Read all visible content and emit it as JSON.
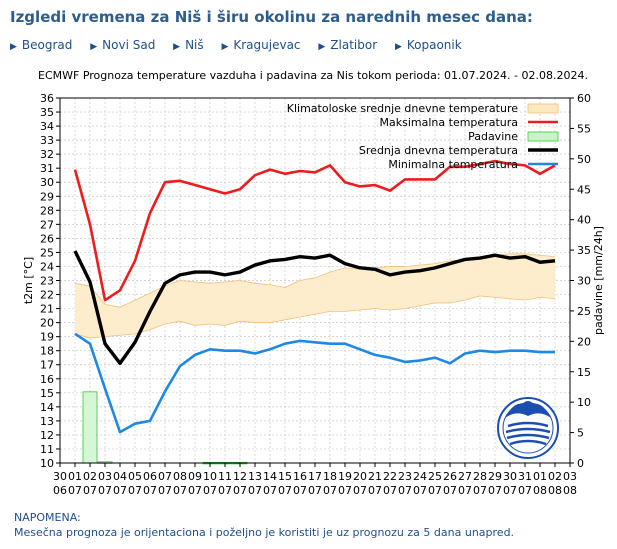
{
  "page": {
    "title": "Izgledi vremena za Niš i širu okolinu za narednih mesec dana:",
    "nav": [
      "Beograd",
      "Novi Sad",
      "Niš",
      "Kragujevac",
      "Zlatibor",
      "Kopaonik"
    ],
    "note_title": "NAPOMENA:",
    "note_text_a": "Mesečna prognoza je orijentaciona i poželjno je koristiti je uz prognozu za",
    "note_link": "5 dana",
    "note_text_b": "unapred."
  },
  "chart_data": {
    "type": "line",
    "title": "ECMWF Prognoza temperature  vazduha i padavina za Nis tokom perioda: 01.07.2024. - 02.08.2024.",
    "ylabel": "t2m [°C]",
    "y2label": "padavine [mm/24h]",
    "ylim": [
      10,
      36
    ],
    "y2lim": [
      0,
      60
    ],
    "x_day": [
      "30",
      "01",
      "02",
      "03",
      "04",
      "05",
      "06",
      "07",
      "08",
      "09",
      "10",
      "11",
      "12",
      "13",
      "14",
      "15",
      "16",
      "17",
      "18",
      "19",
      "20",
      "21",
      "22",
      "23",
      "24",
      "25",
      "26",
      "27",
      "28",
      "29",
      "30",
      "31",
      "01",
      "02",
      "03"
    ],
    "x_month": [
      "06",
      "07",
      "07",
      "07",
      "07",
      "07",
      "07",
      "07",
      "07",
      "07",
      "07",
      "07",
      "07",
      "07",
      "07",
      "07",
      "07",
      "07",
      "07",
      "07",
      "07",
      "07",
      "07",
      "07",
      "07",
      "07",
      "07",
      "07",
      "07",
      "07",
      "07",
      "07",
      "08",
      "08",
      "08"
    ],
    "yticks": [
      10,
      11,
      12,
      13,
      14,
      15,
      16,
      17,
      18,
      19,
      20,
      21,
      22,
      23,
      24,
      25,
      26,
      27,
      28,
      29,
      30,
      31,
      32,
      33,
      34,
      35,
      36
    ],
    "y2ticks": [
      0,
      5,
      10,
      15,
      20,
      25,
      30,
      35,
      40,
      45,
      50,
      55,
      60
    ],
    "legend": [
      {
        "label": "Klimatoloske srednje dnevne temperature",
        "color": "#fde9c0",
        "type": "band"
      },
      {
        "label": "Maksimalna temperatura",
        "color": "#ee1c1c",
        "type": "line"
      },
      {
        "label": "Padavine",
        "color": "#c8f5c8",
        "type": "bar"
      },
      {
        "label": "Srednja dnevna temperatura",
        "color": "#000000",
        "type": "line"
      },
      {
        "label": "Minimalna temperatura",
        "color": "#1e88e5",
        "type": "line"
      }
    ],
    "series": [
      {
        "name": "Maksimalna temperatura",
        "start_index": 1,
        "values": [
          30.9,
          27.0,
          21.6,
          22.3,
          24.4,
          27.8,
          30.0,
          30.1,
          29.8,
          29.5,
          29.2,
          29.5,
          30.5,
          30.9,
          30.6,
          30.8,
          30.7,
          31.2,
          30.0,
          29.7,
          29.8,
          29.4,
          30.2,
          30.2,
          30.2,
          31.1,
          31.1,
          31.3,
          31.5,
          31.3,
          31.2,
          30.6,
          31.2
        ]
      },
      {
        "name": "Srednja dnevna temperatura",
        "start_index": 1,
        "values": [
          25.1,
          22.9,
          18.5,
          17.1,
          18.6,
          20.8,
          22.8,
          23.4,
          23.6,
          23.6,
          23.4,
          23.6,
          24.1,
          24.4,
          24.5,
          24.7,
          24.6,
          24.8,
          24.2,
          23.9,
          23.8,
          23.4,
          23.6,
          23.7,
          23.9,
          24.2,
          24.5,
          24.6,
          24.8,
          24.6,
          24.7,
          24.3,
          24.4
        ]
      },
      {
        "name": "Minimalna temperatura",
        "start_index": 1,
        "values": [
          19.2,
          18.5,
          15.3,
          12.2,
          12.8,
          13.0,
          15.1,
          16.9,
          17.7,
          18.1,
          18.0,
          18.0,
          17.8,
          18.1,
          18.5,
          18.7,
          18.6,
          18.5,
          18.5,
          18.1,
          17.7,
          17.5,
          17.2,
          17.3,
          17.5,
          17.1,
          17.8,
          18.0,
          17.9,
          18.0,
          18.0,
          17.9,
          17.9
        ]
      },
      {
        "name": "Klimatoloske srednje dnevne temperature (donja granica)",
        "start_index": 1,
        "values": [
          19.2,
          18.9,
          19.0,
          19.1,
          19.2,
          19.5,
          19.9,
          20.1,
          19.8,
          19.9,
          19.8,
          20.1,
          20.0,
          20.0,
          20.2,
          20.4,
          20.6,
          20.8,
          20.8,
          20.9,
          21.0,
          20.9,
          21.0,
          21.2,
          21.4,
          21.4,
          21.6,
          21.9,
          21.8,
          21.7,
          21.6,
          21.8,
          21.7
        ]
      },
      {
        "name": "Klimatoloske srednje dnevne temperature (gornja granica)",
        "start_index": 1,
        "values": [
          22.8,
          22.6,
          21.3,
          21.1,
          21.6,
          22.1,
          22.6,
          23.0,
          22.9,
          22.8,
          22.9,
          23.0,
          22.8,
          22.7,
          22.5,
          23.0,
          23.2,
          23.6,
          23.9,
          23.8,
          23.9,
          24.0,
          24.0,
          24.1,
          24.2,
          24.4,
          24.5,
          24.6,
          24.8,
          24.9,
          24.9,
          24.8,
          24.7
        ]
      },
      {
        "name": "Padavine",
        "unit": "mm/24h",
        "start_index": 1,
        "values": [
          0,
          11.7,
          0.2,
          0,
          0,
          0,
          0,
          0,
          0,
          0.1,
          0.1,
          0.1,
          0,
          0,
          0,
          0,
          0,
          0,
          0,
          0,
          0,
          0,
          0,
          0,
          0,
          0,
          0,
          0,
          0,
          0,
          0,
          0,
          0
        ]
      }
    ]
  }
}
